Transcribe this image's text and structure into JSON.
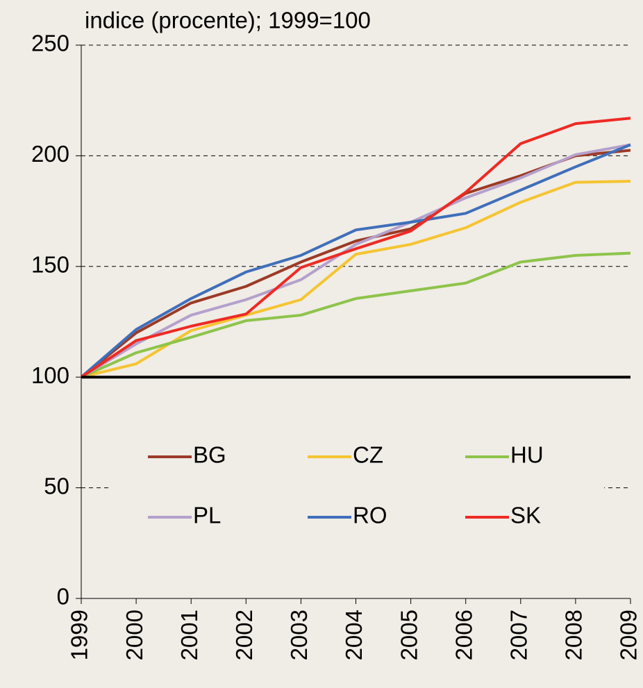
{
  "chart_data": {
    "type": "line",
    "subtitle": "indice (procente); 1999=100",
    "x": [
      1999,
      2000,
      2001,
      2002,
      2003,
      2004,
      2005,
      2006,
      2007,
      2008,
      2009
    ],
    "xlim": [
      1999,
      2009
    ],
    "xticks": [
      1999,
      2000,
      2001,
      2002,
      2003,
      2004,
      2005,
      2006,
      2007,
      2008,
      2009
    ],
    "ylim": [
      0,
      250
    ],
    "yticks": [
      0,
      50,
      100,
      150,
      200,
      250
    ],
    "grid": true,
    "reference_line": 100,
    "series": [
      {
        "name": "BG",
        "color": "#9c3a26",
        "values": [
          100,
          120,
          133.5,
          141,
          152,
          161.5,
          167,
          183,
          191,
          200,
          202.5
        ]
      },
      {
        "name": "CZ",
        "color": "#f5c431",
        "values": [
          100,
          106,
          121,
          128,
          135,
          155.5,
          160,
          167.5,
          179,
          188,
          188.5
        ]
      },
      {
        "name": "HU",
        "color": "#8dc44a",
        "values": [
          100,
          111,
          118,
          125.5,
          128,
          135.5,
          139,
          142.5,
          152,
          155,
          156
        ]
      },
      {
        "name": "PL",
        "color": "#b4a0cc",
        "values": [
          100,
          115,
          128,
          135,
          144,
          160,
          170,
          181,
          190,
          200.5,
          205
        ]
      },
      {
        "name": "RO",
        "color": "#3f6fba",
        "values": [
          100,
          121.5,
          135.5,
          147.5,
          155,
          166.5,
          170,
          174,
          184.5,
          195,
          205
        ]
      },
      {
        "name": "SK",
        "color": "#ee2a24",
        "values": [
          100,
          116.5,
          123,
          128.5,
          149.5,
          158,
          166,
          183.5,
          205.5,
          214.5,
          217
        ]
      }
    ]
  }
}
